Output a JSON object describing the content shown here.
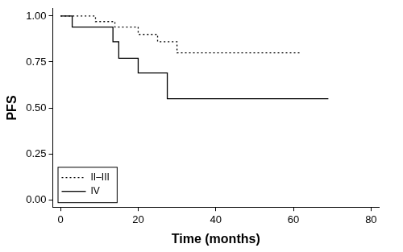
{
  "chart_data": {
    "type": "line",
    "x_label": "Time (months)",
    "y_label": "PFS",
    "series": [
      {
        "name": "II–III",
        "color": "#000000",
        "line_style": "dotted",
        "x": [
          0,
          9,
          14,
          20,
          25,
          30,
          62
        ],
        "values": [
          1.0,
          0.97,
          0.94,
          0.9,
          0.86,
          0.8,
          0.8
        ]
      },
      {
        "name": "IV",
        "color": "#000000",
        "line_style": "solid",
        "x": [
          0,
          3,
          13.5,
          15,
          20,
          27.5,
          69
        ],
        "values": [
          1.0,
          0.94,
          0.86,
          0.77,
          0.69,
          0.55,
          0.55
        ]
      }
    ],
    "xlim": [
      -2,
      82
    ],
    "xticks": [
      0,
      20,
      40,
      60,
      80
    ],
    "ylim": [
      -0.04,
      1.04
    ],
    "yticks": [
      {
        "value": 0,
        "label": "0.00"
      },
      {
        "value": 0.25,
        "label": "0.25"
      },
      {
        "value": 0.5,
        "label": "0.50"
      },
      {
        "value": 0.75,
        "label": "0.75"
      },
      {
        "value": 1,
        "label": "1.00"
      }
    ],
    "grid": false,
    "legend": "lower left"
  }
}
